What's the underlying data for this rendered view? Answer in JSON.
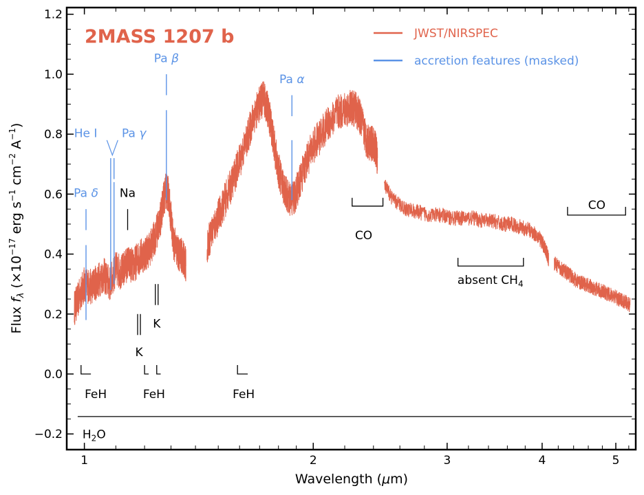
{
  "chart_data": {
    "type": "line",
    "title": "2MASS 1207 b",
    "xlabel": "Wavelength (μm)",
    "ylabel_parts": {
      "main": "Flux ",
      "f": "f",
      "sub": "λ",
      "rest1": " (×10",
      "exp1": "−17",
      "rest2": " erg s",
      "exp2": "−1",
      "rest3": " cm",
      "exp3": "−2",
      "rest4": " A",
      "exp4": "−1",
      "rest5": ")"
    },
    "xscale": "log",
    "xlim": [
      0.95,
      5.3
    ],
    "ylim": [
      -0.25,
      1.22
    ],
    "xticks": [
      {
        "v": 1,
        "label": "1"
      },
      {
        "v": 2,
        "label": "2"
      },
      {
        "v": 3,
        "label": "3"
      },
      {
        "v": 4,
        "label": "4"
      },
      {
        "v": 5,
        "label": "5"
      }
    ],
    "yticks": [
      {
        "v": -0.2,
        "label": "−0.2"
      },
      {
        "v": 0.0,
        "label": "0.0"
      },
      {
        "v": 0.2,
        "label": "0.2"
      },
      {
        "v": 0.4,
        "label": "0.4"
      },
      {
        "v": 0.6,
        "label": "0.6"
      },
      {
        "v": 0.8,
        "label": "0.8"
      },
      {
        "v": 1.0,
        "label": "1.0"
      },
      {
        "v": 1.2,
        "label": "1.2"
      }
    ],
    "legend": {
      "placement": "top-right",
      "entries": [
        {
          "label": "JWST/NIRSPEC",
          "color": "#e0634b"
        },
        {
          "label": "accretion features (masked)",
          "color": "#5b93e6"
        }
      ]
    },
    "colors": {
      "spectrum": "#e0634b",
      "accretion": "#5b93e6",
      "annotation": "#000000"
    },
    "series": [
      {
        "name": "JWST/NIRSPEC",
        "segments": [
          {
            "x": [
              0.97,
              0.99,
              1.0,
              1.02,
              1.04,
              1.06,
              1.08,
              1.1,
              1.12,
              1.14,
              1.16,
              1.18,
              1.2,
              1.22,
              1.24,
              1.26,
              1.27,
              1.28,
              1.29,
              1.31,
              1.33,
              1.35,
              1.36
            ],
            "y": [
              0.22,
              0.27,
              0.3,
              0.29,
              0.31,
              0.33,
              0.3,
              0.35,
              0.34,
              0.37,
              0.36,
              0.39,
              0.4,
              0.42,
              0.46,
              0.52,
              0.58,
              0.61,
              0.6,
              0.44,
              0.4,
              0.39,
              0.36
            ]
          },
          {
            "x": [
              1.45,
              1.48,
              1.52,
              1.56,
              1.6,
              1.64,
              1.67,
              1.7,
              1.72,
              1.74,
              1.76,
              1.78,
              1.8,
              1.83,
              1.86,
              1.89,
              1.92,
              1.96,
              2.0,
              2.05,
              2.1,
              2.15,
              2.2,
              2.24,
              2.28,
              2.31,
              2.35,
              2.38,
              2.41,
              2.43
            ],
            "y": [
              0.43,
              0.49,
              0.56,
              0.63,
              0.71,
              0.79,
              0.86,
              0.9,
              0.92,
              0.89,
              0.83,
              0.75,
              0.68,
              0.62,
              0.58,
              0.59,
              0.64,
              0.71,
              0.76,
              0.8,
              0.84,
              0.87,
              0.88,
              0.89,
              0.88,
              0.85,
              0.78,
              0.77,
              0.76,
              0.72
            ]
          },
          {
            "x": [
              2.48,
              2.55,
              2.65,
              2.75,
              2.85,
              2.95,
              3.05,
              3.15,
              3.25,
              3.35,
              3.45,
              3.55,
              3.65,
              3.75,
              3.85,
              3.95,
              4.0,
              4.05,
              4.08
            ],
            "y": [
              0.63,
              0.58,
              0.55,
              0.54,
              0.53,
              0.53,
              0.52,
              0.52,
              0.52,
              0.51,
              0.51,
              0.5,
              0.5,
              0.49,
              0.48,
              0.46,
              0.44,
              0.41,
              0.38
            ]
          },
          {
            "x": [
              4.15,
              4.25,
              4.35,
              4.45,
              4.55,
              4.65,
              4.75,
              4.85,
              4.95,
              5.05,
              5.15,
              5.22
            ],
            "y": [
              0.37,
              0.35,
              0.33,
              0.31,
              0.3,
              0.29,
              0.28,
              0.27,
              0.26,
              0.25,
              0.24,
              0.23
            ]
          }
        ]
      }
    ],
    "accretion_lines": [
      {
        "name": "Pa δ",
        "x": 1.005,
        "y0": 0.18,
        "y1": 0.43
      },
      {
        "name": "He I",
        "x": 1.083,
        "y0": 0.28,
        "y1": 0.65
      },
      {
        "name": "Pa γ",
        "x": 1.094,
        "y0": 0.3,
        "y1": 0.64
      },
      {
        "name": "Pa β",
        "x": 1.282,
        "y0": 0.58,
        "y1": 0.88
      },
      {
        "name": "Pa α",
        "x": 1.875,
        "y0": 0.58,
        "y1": 0.78
      }
    ],
    "annotations": [
      {
        "text": "Pa δ",
        "color": "blue",
        "x": 1.005,
        "y": 0.59,
        "anchor": "middle"
      },
      {
        "text": "He I",
        "color": "blue",
        "x": 1.04,
        "y": 0.79,
        "anchor": "end"
      },
      {
        "text": "Pa γ",
        "color": "blue",
        "x": 1.12,
        "y": 0.79,
        "anchor": "start"
      },
      {
        "text": "Pa β",
        "color": "blue",
        "x": 1.282,
        "y": 1.04,
        "anchor": "middle"
      },
      {
        "text": "Pa α",
        "color": "blue",
        "x": 1.875,
        "y": 0.97,
        "anchor": "middle"
      },
      {
        "text": "Na",
        "color": "black",
        "x": 1.14,
        "y": 0.59,
        "anchor": "middle"
      },
      {
        "text": "K",
        "color": "black",
        "x": 1.18,
        "y": 0.06,
        "anchor": "middle"
      },
      {
        "text": "K",
        "color": "black",
        "x": 1.245,
        "y": 0.155,
        "anchor": "middle"
      },
      {
        "text": "FeH",
        "color": "black",
        "x": 1.035,
        "y": -0.08,
        "anchor": "middle"
      },
      {
        "text": "FeH",
        "color": "black",
        "x": 1.235,
        "y": -0.08,
        "anchor": "middle"
      },
      {
        "text": "FeH",
        "color": "black",
        "x": 1.62,
        "y": -0.08,
        "anchor": "middle"
      },
      {
        "text": "CO",
        "color": "black",
        "x": 2.33,
        "y": 0.45,
        "anchor": "middle"
      },
      {
        "text": "CO",
        "color": "black",
        "x": 4.72,
        "y": 0.55,
        "anchor": "middle"
      },
      {
        "text": "absent CH",
        "sub": "4",
        "color": "black",
        "x": 3.42,
        "y": 0.3,
        "anchor": "middle"
      },
      {
        "text": "H",
        "sub": "2",
        "tail": "O",
        "color": "black",
        "x": 1.03,
        "y": -0.215,
        "anchor": "middle"
      }
    ],
    "brackets": [
      {
        "type": "bracket-down",
        "x0": 2.25,
        "x1": 2.47,
        "y": 0.56
      },
      {
        "type": "bracket-down",
        "x0": 4.32,
        "x1": 5.15,
        "y": 0.53
      },
      {
        "type": "bracket-up",
        "x0": 3.1,
        "x1": 3.78,
        "y": 0.36
      },
      {
        "type": "corner",
        "x0": 0.99,
        "x1": 1.02,
        "y": 0.0
      },
      {
        "type": "corner",
        "x0": 1.2,
        "x1": 1.215,
        "y": 0.0
      },
      {
        "type": "corner",
        "x0": 1.245,
        "x1": 1.26,
        "y": 0.0
      },
      {
        "type": "corner",
        "x0": 1.59,
        "x1": 1.64,
        "y": 0.0
      }
    ],
    "doublets": [
      {
        "name": "K",
        "x": 1.18,
        "y0": 0.13,
        "y1": 0.2
      },
      {
        "name": "K",
        "x": 1.245,
        "y0": 0.23,
        "y1": 0.3
      }
    ],
    "markers": [
      {
        "name": "Na",
        "x": 1.14,
        "y0": 0.48,
        "y1": 0.55
      }
    ],
    "hlines": [
      {
        "name": "H2O band",
        "x0": 0.98,
        "x1": 5.25,
        "y": -0.142
      }
    ]
  }
}
